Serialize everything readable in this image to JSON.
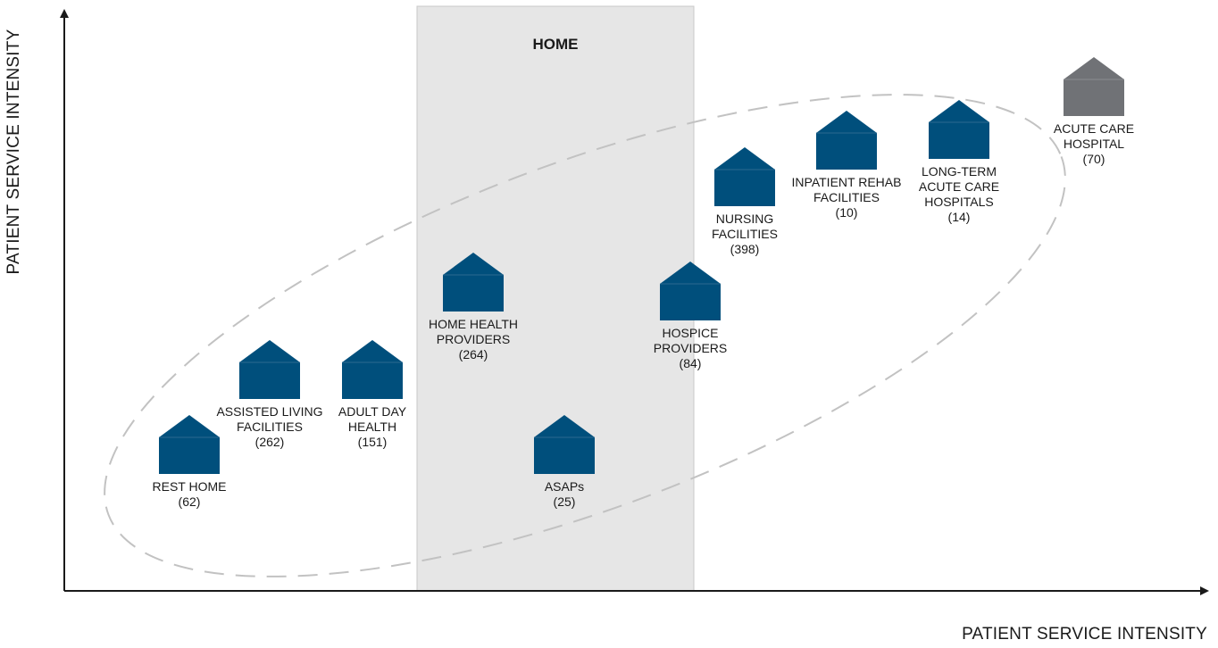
{
  "axes": {
    "x_label": "PATIENT SERVICE INTENSITY",
    "y_label": "PATIENT SERVICE INTENSITY"
  },
  "home_region": {
    "label": "HOME",
    "color": "#e6e6e6"
  },
  "colors": {
    "facility": "#004f7c",
    "hospital": "#707276",
    "ellipse_dash": "#c2c2c2",
    "axis": "#1a1a1a"
  },
  "facilities": [
    {
      "id": "rest-home",
      "name": "REST HOME",
      "count": "(62)",
      "icon": "house-icon"
    },
    {
      "id": "assisted-living",
      "name": "ASSISTED LIVING\nFACILITIES",
      "count": "(262)",
      "icon": "house-icon"
    },
    {
      "id": "adult-day-health",
      "name": "ADULT DAY\nHEALTH",
      "count": "(151)",
      "icon": "house-icon"
    },
    {
      "id": "home-health",
      "name": "HOME HEALTH\nPROVIDERS",
      "count": "(264)",
      "icon": "house-icon"
    },
    {
      "id": "asaps",
      "name": "ASAPs",
      "count": "(25)",
      "icon": "house-icon"
    },
    {
      "id": "hospice",
      "name": "HOSPICE\nPROVIDERS",
      "count": "(84)",
      "icon": "house-icon"
    },
    {
      "id": "nursing",
      "name": "NURSING\nFACILITIES",
      "count": "(398)",
      "icon": "house-icon"
    },
    {
      "id": "inpatient-rehab",
      "name": "INPATIENT REHAB\nFACILITIES",
      "count": "(10)",
      "icon": "house-icon"
    },
    {
      "id": "ltach",
      "name": "LONG-TERM\nACUTE CARE\nHOSPITALS",
      "count": "(14)",
      "icon": "house-icon"
    },
    {
      "id": "acute-care",
      "name": "ACUTE CARE\nHOSPITAL",
      "count": "(70)",
      "icon": "house-icon",
      "muted": true
    }
  ]
}
